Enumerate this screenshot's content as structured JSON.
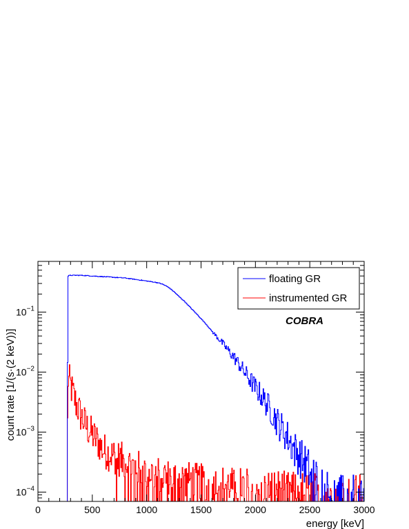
{
  "chart_data": {
    "type": "line",
    "xlabel": "energy [keV]",
    "ylabel": "count rate [1/(s·(2 keV))]",
    "xlim": [
      0,
      3000
    ],
    "ylim": [
      7e-05,
      0.7
    ],
    "yscale": "log",
    "x_ticks": [
      "0",
      "500",
      "1000",
      "1500",
      "2000",
      "2500",
      "3000"
    ],
    "y_ticks": [
      {
        "value": 0.1,
        "base": "10",
        "exp": "−1"
      },
      {
        "value": 0.01,
        "base": "10",
        "exp": "−2"
      },
      {
        "value": 0.001,
        "base": "10",
        "exp": "−3"
      },
      {
        "value": 0.0001,
        "base": "10",
        "exp": "−4"
      }
    ],
    "annotation": "COBRA",
    "legend_position": "top-right",
    "series": [
      {
        "name": "floating GR",
        "color": "#0000ff",
        "x": [
          270,
          275,
          300,
          400,
          500,
          600,
          700,
          800,
          900,
          1000,
          1100,
          1150,
          1200,
          1250,
          1300,
          1350,
          1400,
          1450,
          1500,
          1550,
          1600,
          1650,
          1700,
          1750,
          1800,
          1850,
          1900,
          1950,
          2000,
          2050,
          2100,
          2150,
          2200,
          2250,
          2300,
          2350,
          2400,
          2450,
          2500,
          2550,
          2600,
          2650,
          2700,
          2750,
          2800,
          2850,
          2900,
          2950,
          3000
        ],
        "y": [
          0.0001,
          0.4,
          0.41,
          0.41,
          0.4,
          0.39,
          0.38,
          0.37,
          0.35,
          0.33,
          0.31,
          0.29,
          0.26,
          0.22,
          0.18,
          0.15,
          0.12,
          0.097,
          0.078,
          0.062,
          0.048,
          0.038,
          0.03,
          0.023,
          0.018,
          0.0135,
          0.01,
          0.0075,
          0.0055,
          0.0042,
          0.003,
          0.0022,
          0.0015,
          0.0011,
          0.0008,
          0.00055,
          0.0004,
          0.0003,
          0.00022,
          0.00016,
          0.00012,
          0.0001,
          9e-05,
          8e-05,
          8e-05,
          8e-05,
          8e-05,
          8e-05,
          8e-05
        ]
      },
      {
        "name": "instrumented GR",
        "color": "#ff0000",
        "x": [
          270,
          275,
          300,
          350,
          400,
          450,
          500,
          550,
          600,
          700,
          800,
          900,
          1000,
          1100,
          1200,
          1300,
          1400,
          1500,
          1600,
          1700,
          1800,
          1900,
          2000,
          2100,
          2200,
          2300,
          2400,
          2500,
          2600,
          2700,
          2800,
          2900,
          3000
        ],
        "y": [
          0.0001,
          0.008,
          0.006,
          0.003,
          0.0018,
          0.0012,
          0.0009,
          0.0007,
          0.0005,
          0.0004,
          0.00032,
          0.00026,
          0.00022,
          0.0002,
          0.00018,
          0.00017,
          0.00016,
          0.00015,
          0.00014,
          0.00014,
          0.00013,
          0.00013,
          0.00012,
          0.00012,
          0.00012,
          0.00011,
          0.00011,
          0.00011,
          0.0001,
          0.0001,
          0.0001,
          0.0001,
          0.0001
        ]
      }
    ]
  }
}
